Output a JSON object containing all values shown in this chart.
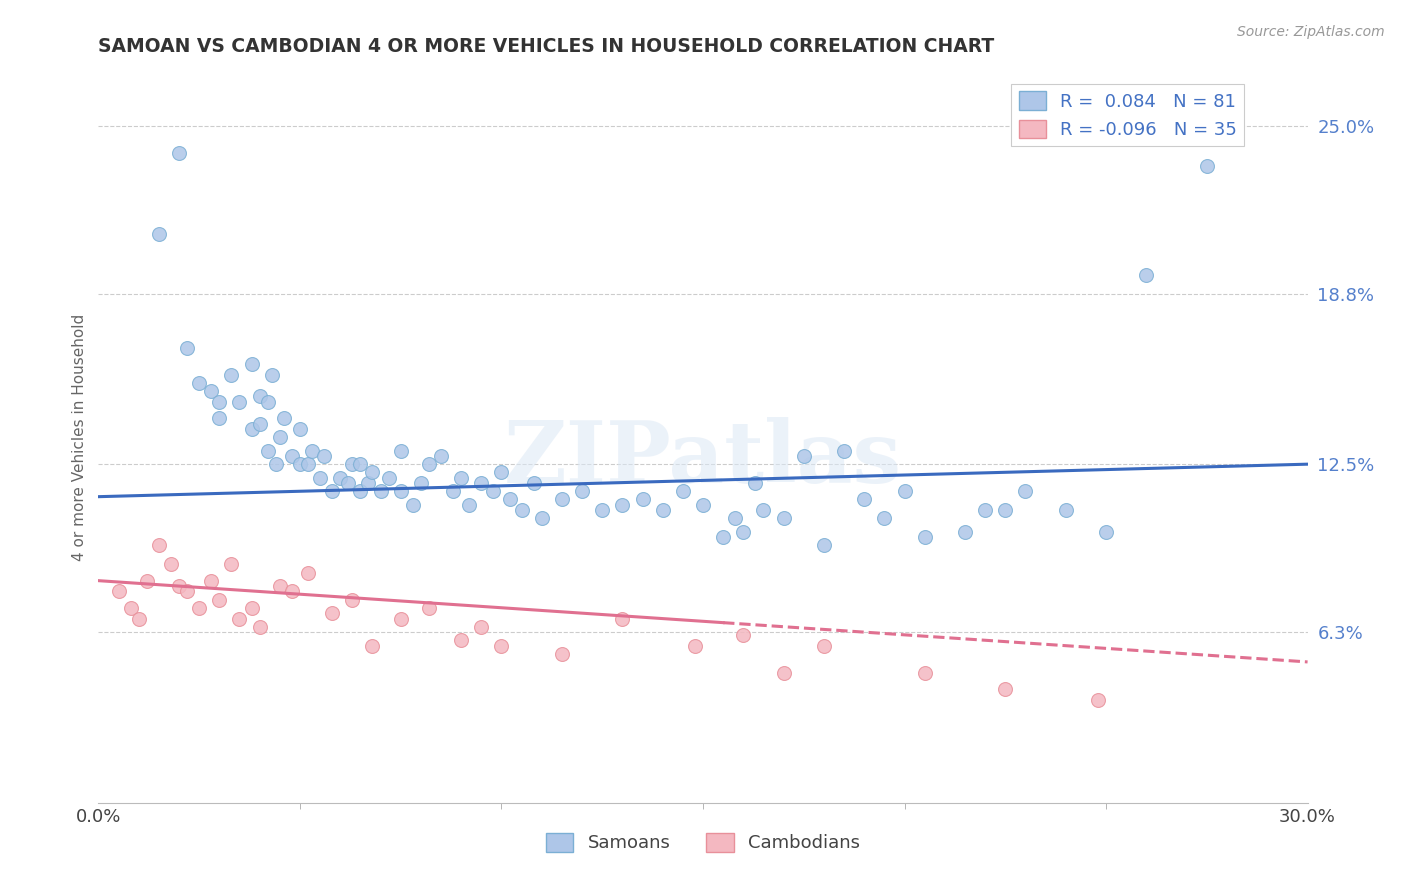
{
  "title": "SAMOAN VS CAMBODIAN 4 OR MORE VEHICLES IN HOUSEHOLD CORRELATION CHART",
  "source": "Source: ZipAtlas.com",
  "ylabel": "4 or more Vehicles in Household",
  "xlim": [
    0.0,
    0.3
  ],
  "ylim": [
    0.0,
    0.27
  ],
  "xtick_labels": [
    "0.0%",
    "30.0%"
  ],
  "xtick_minor": [
    0.05,
    0.1,
    0.15,
    0.2,
    0.25
  ],
  "ytick_labels": [
    "6.3%",
    "12.5%",
    "18.8%",
    "25.0%"
  ],
  "ytick_values": [
    0.063,
    0.125,
    0.188,
    0.25
  ],
  "legend_entries": [
    {
      "label": "R =  0.084   N = 81",
      "color": "#aec6e8"
    },
    {
      "label": "R = -0.096   N = 35",
      "color": "#f4b8c1"
    }
  ],
  "samoan_color": "#aec6e8",
  "samoan_edge": "#7bafd4",
  "cambodian_color": "#f4b8c1",
  "cambodian_edge": "#e8909a",
  "trend_samoan_color": "#3a6abf",
  "trend_cambodian_color": "#e07090",
  "watermark_text": "ZIPatlas",
  "background_color": "#ffffff",
  "grid_color": "#cccccc",
  "samoan_x": [
    0.02,
    0.015,
    0.022,
    0.025,
    0.028,
    0.03,
    0.03,
    0.033,
    0.035,
    0.038,
    0.038,
    0.04,
    0.04,
    0.042,
    0.042,
    0.043,
    0.044,
    0.045,
    0.046,
    0.048,
    0.05,
    0.05,
    0.052,
    0.053,
    0.055,
    0.056,
    0.058,
    0.06,
    0.062,
    0.063,
    0.065,
    0.065,
    0.067,
    0.068,
    0.07,
    0.072,
    0.075,
    0.075,
    0.078,
    0.08,
    0.082,
    0.085,
    0.088,
    0.09,
    0.092,
    0.095,
    0.098,
    0.1,
    0.102,
    0.105,
    0.108,
    0.11,
    0.115,
    0.12,
    0.125,
    0.13,
    0.135,
    0.14,
    0.145,
    0.15,
    0.155,
    0.158,
    0.16,
    0.163,
    0.165,
    0.17,
    0.175,
    0.18,
    0.185,
    0.19,
    0.195,
    0.2,
    0.205,
    0.215,
    0.22,
    0.225,
    0.23,
    0.24,
    0.25,
    0.26,
    0.275
  ],
  "samoan_y": [
    0.24,
    0.21,
    0.168,
    0.155,
    0.152,
    0.148,
    0.142,
    0.158,
    0.148,
    0.138,
    0.162,
    0.15,
    0.14,
    0.13,
    0.148,
    0.158,
    0.125,
    0.135,
    0.142,
    0.128,
    0.125,
    0.138,
    0.125,
    0.13,
    0.12,
    0.128,
    0.115,
    0.12,
    0.118,
    0.125,
    0.115,
    0.125,
    0.118,
    0.122,
    0.115,
    0.12,
    0.13,
    0.115,
    0.11,
    0.118,
    0.125,
    0.128,
    0.115,
    0.12,
    0.11,
    0.118,
    0.115,
    0.122,
    0.112,
    0.108,
    0.118,
    0.105,
    0.112,
    0.115,
    0.108,
    0.11,
    0.112,
    0.108,
    0.115,
    0.11,
    0.098,
    0.105,
    0.1,
    0.118,
    0.108,
    0.105,
    0.128,
    0.095,
    0.13,
    0.112,
    0.105,
    0.115,
    0.098,
    0.1,
    0.108,
    0.108,
    0.115,
    0.108,
    0.1,
    0.195,
    0.235
  ],
  "cambodian_x": [
    0.005,
    0.008,
    0.01,
    0.012,
    0.015,
    0.018,
    0.02,
    0.022,
    0.025,
    0.028,
    0.03,
    0.033,
    0.035,
    0.038,
    0.04,
    0.045,
    0.048,
    0.052,
    0.058,
    0.063,
    0.068,
    0.075,
    0.082,
    0.09,
    0.095,
    0.1,
    0.115,
    0.13,
    0.148,
    0.16,
    0.17,
    0.18,
    0.205,
    0.225,
    0.248
  ],
  "cambodian_y": [
    0.078,
    0.072,
    0.068,
    0.082,
    0.095,
    0.088,
    0.08,
    0.078,
    0.072,
    0.082,
    0.075,
    0.088,
    0.068,
    0.072,
    0.065,
    0.08,
    0.078,
    0.085,
    0.07,
    0.075,
    0.058,
    0.068,
    0.072,
    0.06,
    0.065,
    0.058,
    0.055,
    0.068,
    0.058,
    0.062,
    0.048,
    0.058,
    0.048,
    0.042,
    0.038
  ],
  "trend_samoan_x0": 0.0,
  "trend_samoan_y0": 0.113,
  "trend_samoan_x1": 0.3,
  "trend_samoan_y1": 0.125,
  "trend_cambodian_x0": 0.0,
  "trend_cambodian_y0": 0.082,
  "trend_cambodian_x1": 0.3,
  "trend_cambodian_y1": 0.052,
  "trend_cambodian_solid_end": 0.155
}
